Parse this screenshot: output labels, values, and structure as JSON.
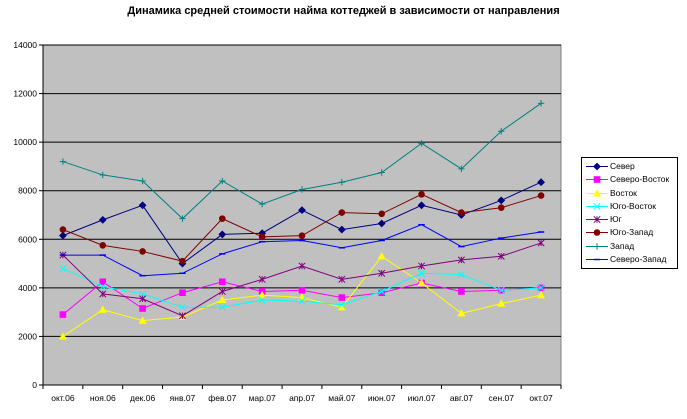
{
  "chart_data": {
    "type": "line",
    "title": "Динамика средней стоимости найма коттеджей в зависимости от направления",
    "xlabel": "",
    "ylabel": "",
    "categories": [
      "окт.06",
      "ноя.06",
      "дек.06",
      "янв.07",
      "фев.07",
      "мар.07",
      "апр.07",
      "май.07",
      "июн.07",
      "июл.07",
      "авг.07",
      "сен.07",
      "окт.07"
    ],
    "ylim": [
      0,
      14000
    ],
    "yticks": [
      0,
      2000,
      4000,
      6000,
      8000,
      10000,
      12000,
      14000
    ],
    "grid": true,
    "legend_position": "right",
    "plot_background": "#c0c0c0",
    "series": [
      {
        "name": "Север",
        "color": "#000080",
        "marker": "diamond",
        "values": [
          6150,
          6800,
          7400,
          5000,
          6200,
          6250,
          7200,
          6400,
          6650,
          7400,
          7000,
          7600,
          8350
        ]
      },
      {
        "name": "Северо-Восток",
        "color": "#ff00ff",
        "marker": "square",
        "values": [
          2900,
          4250,
          3150,
          3800,
          4250,
          3850,
          3900,
          3600,
          3800,
          4200,
          3850,
          3900,
          4000
        ]
      },
      {
        "name": "Восток",
        "color": "#ffff00",
        "marker": "triangle",
        "values": [
          2000,
          3100,
          2650,
          2800,
          3500,
          3700,
          3600,
          3200,
          5300,
          4200,
          2950,
          3350,
          3700
        ]
      },
      {
        "name": "Юго-Восток",
        "color": "#00ffff",
        "marker": "x",
        "values": [
          4800,
          4050,
          3750,
          3200,
          3200,
          3500,
          3450,
          3300,
          3850,
          4600,
          4550,
          3900,
          4000
        ]
      },
      {
        "name": "Юг",
        "color": "#800080",
        "marker": "asterisk",
        "values": [
          5350,
          3750,
          3550,
          2850,
          3850,
          4350,
          4900,
          4350,
          4600,
          4900,
          5150,
          5300,
          5850
        ]
      },
      {
        "name": "Юго-Запад",
        "color": "#800000",
        "marker": "circle",
        "values": [
          6400,
          5750,
          5500,
          5100,
          6850,
          6100,
          6150,
          7100,
          7050,
          7850,
          7100,
          7300,
          7800
        ]
      },
      {
        "name": "Запад",
        "color": "#008080",
        "marker": "plus",
        "values": [
          9200,
          8650,
          8400,
          6850,
          8400,
          7450,
          8050,
          8350,
          8750,
          9950,
          8900,
          10450,
          11600
        ]
      },
      {
        "name": "Северо-Запад",
        "color": "#0000ff",
        "marker": "dash",
        "values": [
          5350,
          5350,
          4500,
          4600,
          5400,
          5900,
          5950,
          5650,
          5950,
          6600,
          5700,
          6050,
          6300
        ]
      }
    ]
  }
}
